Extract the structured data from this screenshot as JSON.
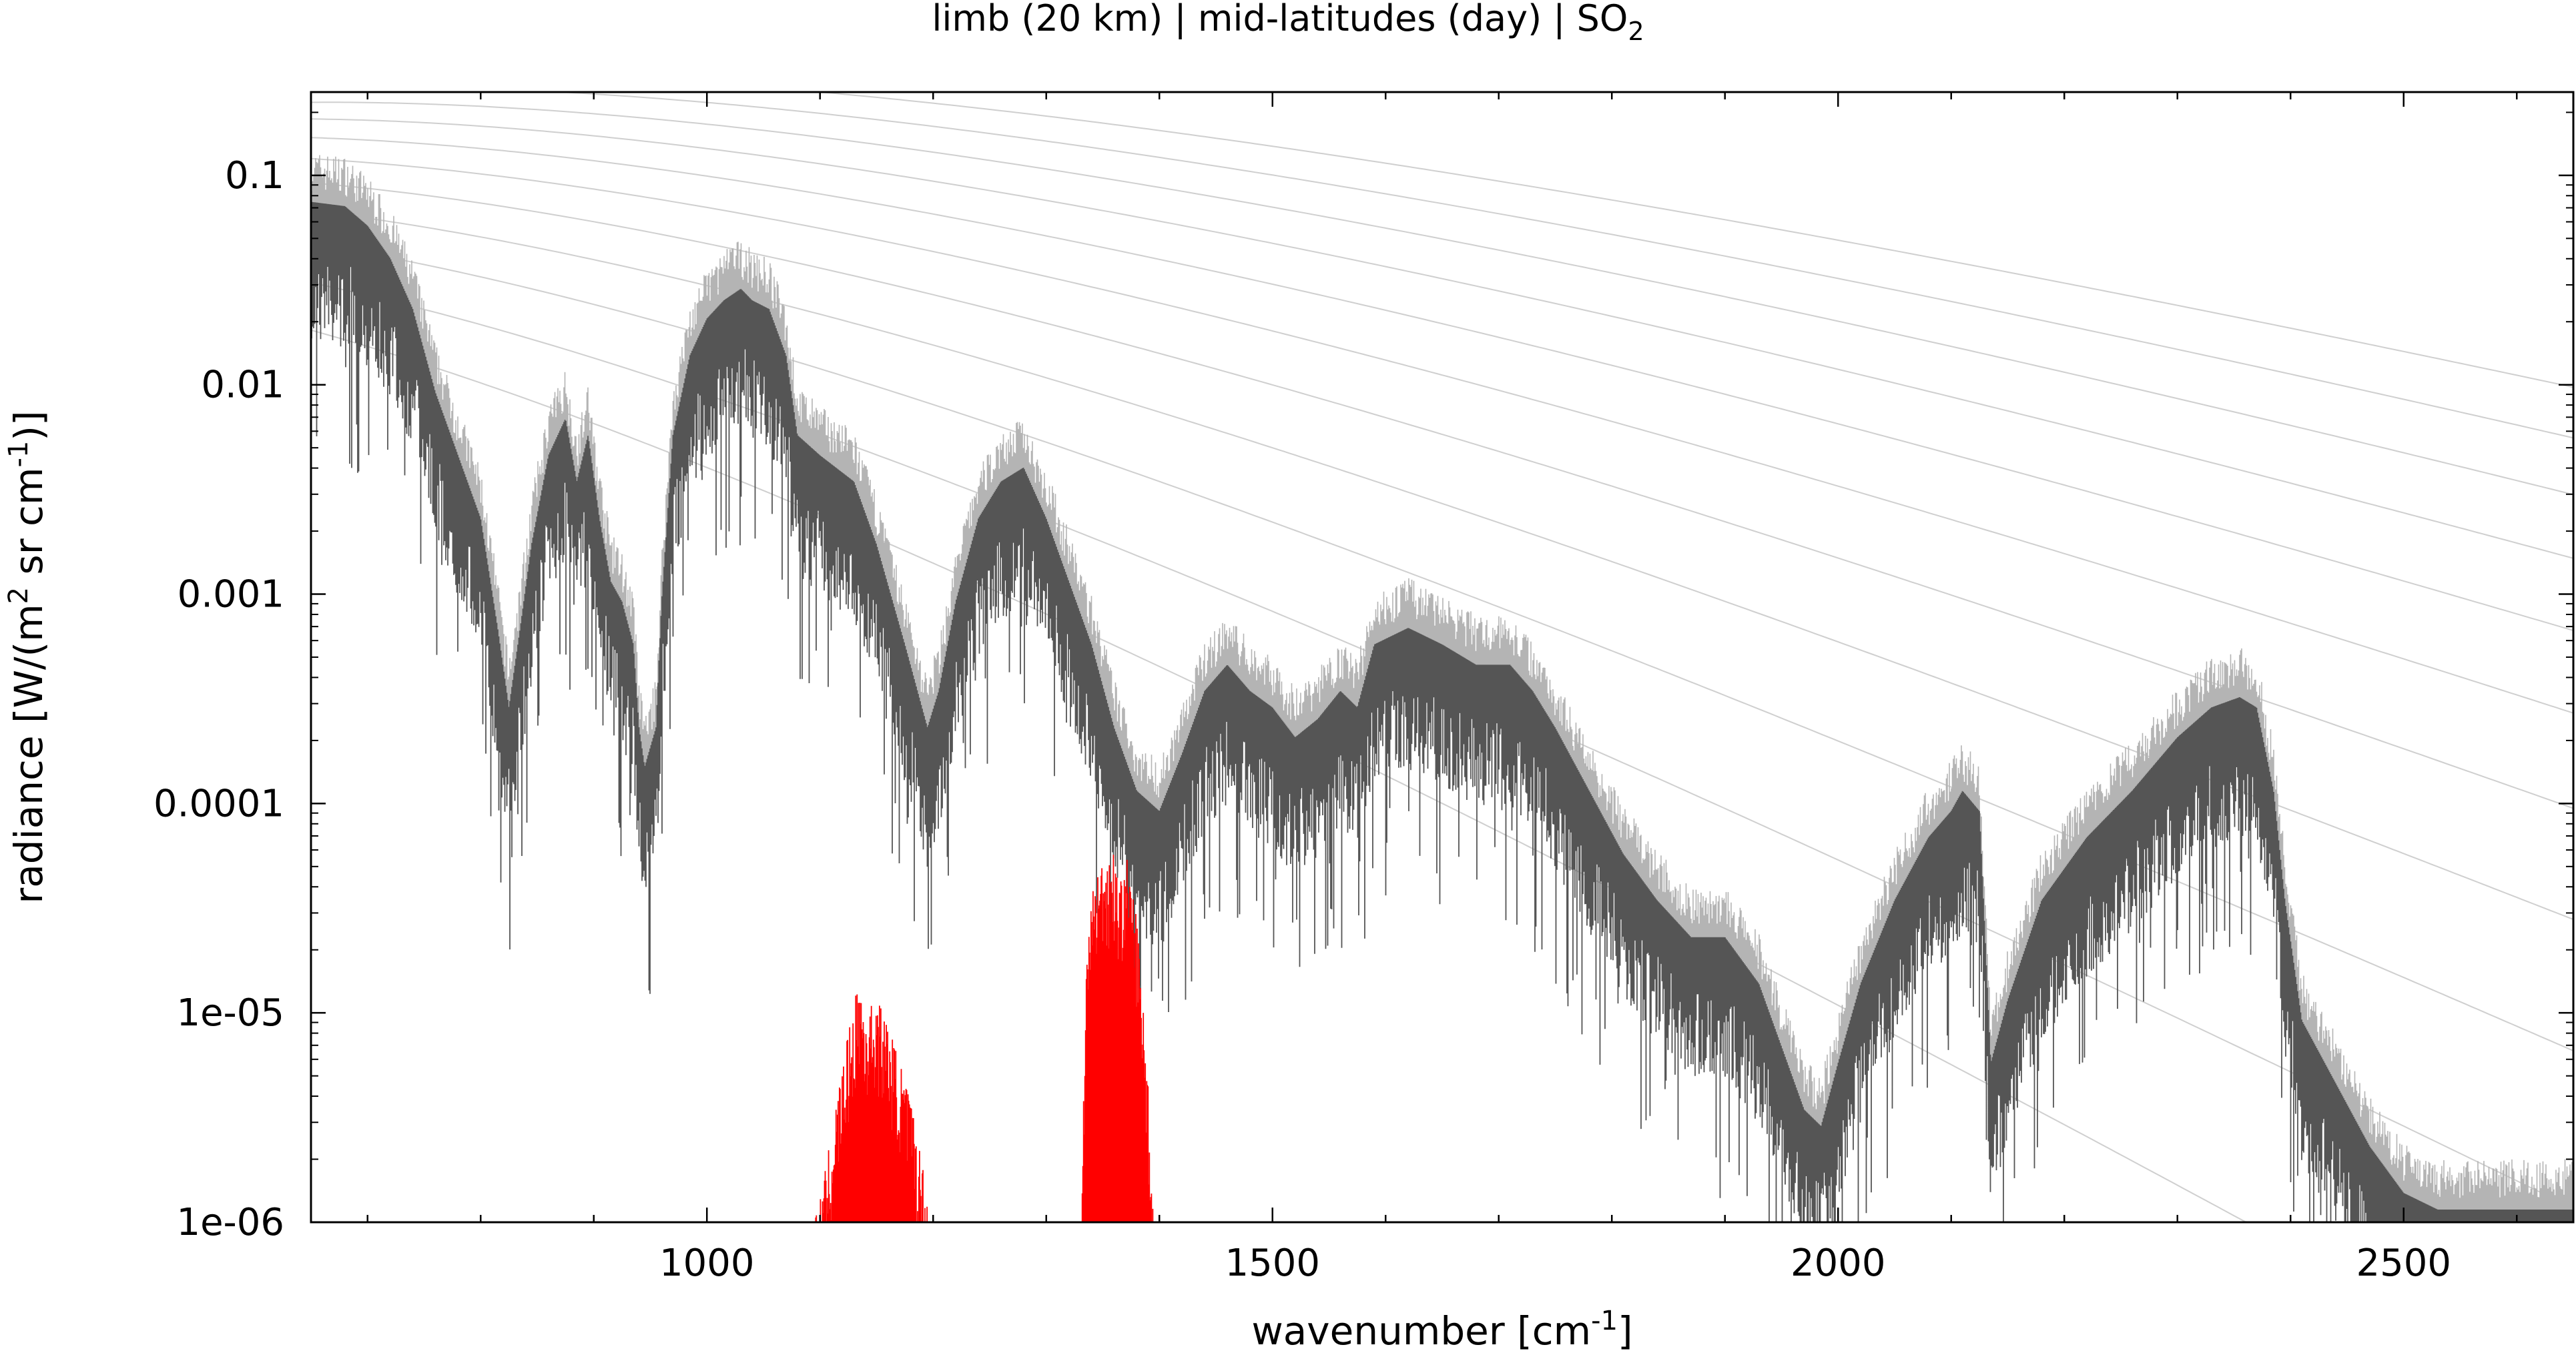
{
  "chart_data": {
    "type": "line",
    "title_main": "limb (20 km) | mid-latitudes (day) | SO",
    "title_sub": "2",
    "xlabel_main": "wavenumber [cm",
    "xlabel_sup": "-1",
    "xlabel_end": "]",
    "ylabel_a": "radiance [W/(m",
    "ylabel_sup1": "2",
    "ylabel_b": " sr cm",
    "ylabel_sup2": "-1",
    "ylabel_c": ")]",
    "xlim": [
      650,
      2650
    ],
    "ylim": [
      1e-06,
      0.25
    ],
    "yscale": "log",
    "grid": false,
    "x_ticks": [
      1000,
      1500,
      2000,
      2500
    ],
    "x_tick_labels": [
      "1000",
      "1500",
      "2000",
      "2500"
    ],
    "y_ticks": [
      0.1,
      0.01,
      0.001,
      0.0001,
      1e-05,
      1e-06
    ],
    "y_tick_labels": [
      "0.1",
      "0.01",
      "0.001",
      "0.0001",
      "1e-05",
      "1e-06"
    ],
    "colors": {
      "total": "#555555",
      "total_light": "#b4b4b4",
      "so2": "#ff0000",
      "planck": "#bbbbbb",
      "axis": "#000000"
    },
    "series": [
      {
        "role": "total",
        "x": [
          650,
          680,
          700,
          720,
          740,
          760,
          780,
          800,
          815,
          825,
          835,
          845,
          860,
          875,
          885,
          895,
          905,
          915,
          925,
          935,
          940,
          945,
          955,
          960,
          970,
          985,
          1000,
          1015,
          1030,
          1040,
          1055,
          1070,
          1080,
          1100,
          1130,
          1150,
          1175,
          1195,
          1205,
          1220,
          1240,
          1260,
          1280,
          1300,
          1320,
          1340,
          1360,
          1380,
          1400,
          1420,
          1440,
          1460,
          1480,
          1500,
          1520,
          1540,
          1560,
          1575,
          1590,
          1620,
          1650,
          1680,
          1710,
          1730,
          1750,
          1780,
          1810,
          1840,
          1870,
          1900,
          1930,
          1950,
          1970,
          1985,
          2000,
          2020,
          2050,
          2080,
          2100,
          2110,
          2125,
          2135,
          2150,
          2180,
          2220,
          2260,
          2300,
          2330,
          2355,
          2370,
          2385,
          2395,
          2410,
          2440,
          2470,
          2500,
          2530,
          2560,
          2590,
          2620,
          2650
        ],
        "y": [
          0.065,
          0.062,
          0.05,
          0.035,
          0.02,
          0.008,
          0.004,
          0.002,
          0.0006,
          0.00025,
          0.0006,
          0.0015,
          0.004,
          0.006,
          0.003,
          0.005,
          0.002,
          0.001,
          0.0008,
          0.0005,
          0.0002,
          0.00013,
          0.0002,
          0.0008,
          0.005,
          0.012,
          0.018,
          0.022,
          0.025,
          0.022,
          0.02,
          0.012,
          0.005,
          0.004,
          0.003,
          0.0015,
          0.0005,
          0.0002,
          0.0003,
          0.0008,
          0.002,
          0.003,
          0.0035,
          0.002,
          0.001,
          0.0005,
          0.0002,
          0.0001,
          8e-05,
          0.00015,
          0.0003,
          0.0004,
          0.0003,
          0.00025,
          0.00018,
          0.00022,
          0.0003,
          0.00025,
          0.0005,
          0.0006,
          0.0005,
          0.0004,
          0.0004,
          0.0003,
          0.0002,
          0.0001,
          5e-05,
          3e-05,
          2e-05,
          2e-05,
          1.2e-05,
          6e-06,
          3e-06,
          2.5e-06,
          5e-06,
          1.2e-05,
          3e-05,
          6e-05,
          8e-05,
          0.0001,
          8e-05,
          5e-06,
          1e-05,
          3e-05,
          6e-05,
          0.0001,
          0.00018,
          0.00025,
          0.00028,
          0.00025,
          0.0001,
          3e-05,
          8e-06,
          4e-06,
          2e-06,
          1.2e-06,
          1e-06,
          1e-06,
          1e-06,
          1e-06,
          1e-06
        ]
      },
      {
        "role": "so2",
        "x": [
          1095,
          1105,
          1115,
          1125,
          1135,
          1140,
          1150,
          1160,
          1170,
          1180,
          1190,
          1200,
          1330,
          1335,
          1340,
          1350,
          1360,
          1365,
          1370,
          1380,
          1390,
          1395
        ],
        "y": [
          1e-06,
          1.8e-06,
          4e-06,
          8e-06,
          1.5e-05,
          1e-05,
          1.2e-05,
          9e-06,
          6e-06,
          4e-06,
          2e-06,
          1e-06,
          1e-06,
          1.5e-05,
          4e-05,
          5.5e-05,
          6e-05,
          4e-05,
          6e-05,
          3e-05,
          5e-06,
          1e-06
        ]
      }
    ],
    "planck_reference": {
      "temperatures_K": [
        180,
        200,
        220,
        240,
        260,
        280,
        300,
        320,
        340,
        360,
        380
      ]
    }
  }
}
